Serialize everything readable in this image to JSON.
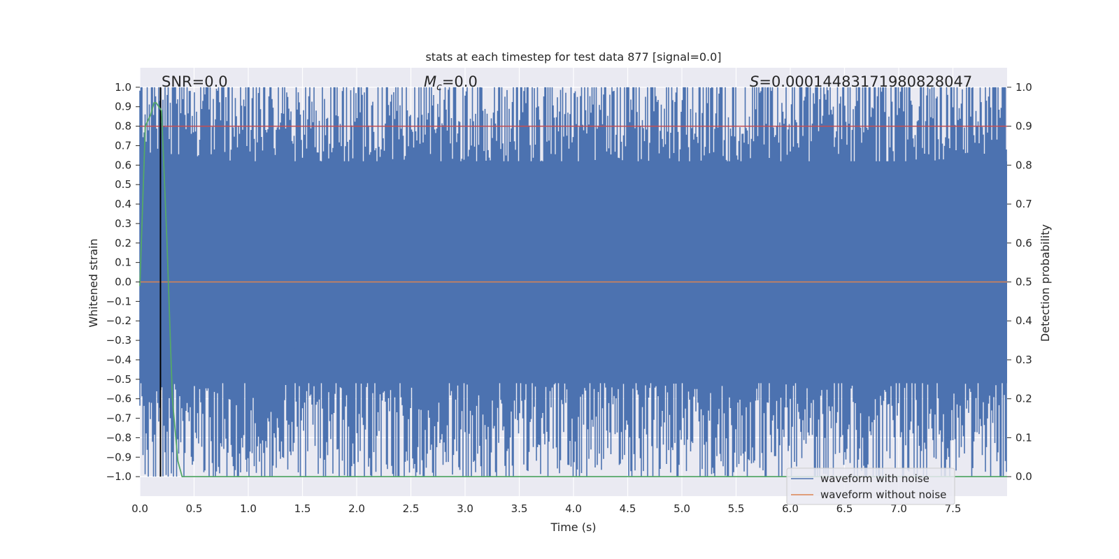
{
  "chart_data": {
    "type": "line",
    "title": "stats at each timestep for test data 877 [signal=0.0]",
    "xlabel": "Time (s)",
    "ylabel_left": "Whitened strain",
    "ylabel_right": "Detection probability",
    "xlim": [
      0.0,
      8.0
    ],
    "ylim_left": [
      -1.1,
      1.1
    ],
    "ylim_right": [
      -0.05,
      1.05
    ],
    "xticks": [
      "0.0",
      "0.5",
      "1.0",
      "1.5",
      "2.0",
      "2.5",
      "3.0",
      "3.5",
      "4.0",
      "4.5",
      "5.0",
      "5.5",
      "6.0",
      "6.5",
      "7.0",
      "7.5"
    ],
    "yticks_left": [
      "1.0",
      "0.9",
      "0.8",
      "0.7",
      "0.6",
      "0.5",
      "0.4",
      "0.3",
      "0.2",
      "0.1",
      "0.0",
      "−0.1",
      "−0.2",
      "−0.3",
      "−0.4",
      "−0.5",
      "−0.6",
      "−0.7",
      "−0.8",
      "−0.9",
      "−1.0"
    ],
    "yticks_right": [
      "1.0",
      "0.9",
      "0.8",
      "0.7",
      "0.6",
      "0.5",
      "0.4",
      "0.3",
      "0.2",
      "0.1",
      "0.0"
    ],
    "annotations": {
      "snr": "SNR=0.0",
      "mc_symbol": "M",
      "mc_sub": "c",
      "mc_value": "=0.0",
      "s_symbol": "S",
      "s_value": "=0.00014483171980828047"
    },
    "series": [
      {
        "name": "waveform with noise",
        "color": "#4c72b0",
        "description": "whitened noisy strain, clipped to [-1, 1]"
      },
      {
        "name": "waveform without noise",
        "color": "#dd8452",
        "x": [
          0.0,
          8.0
        ],
        "y": [
          0.0,
          0.0
        ]
      },
      {
        "name": "detection probability",
        "color": "#55a868",
        "axis": "right",
        "x": [
          0.0,
          0.05,
          0.1,
          0.13,
          0.15,
          0.2,
          0.25,
          0.3,
          0.35,
          0.39,
          8.0
        ],
        "y": [
          0.49,
          0.9,
          0.93,
          0.96,
          0.96,
          0.94,
          0.6,
          0.2,
          0.04,
          0.0,
          0.0
        ]
      },
      {
        "name": "threshold",
        "color": "#c44e52",
        "axis": "right",
        "x": [
          0.0,
          8.0
        ],
        "y": [
          0.9,
          0.9
        ]
      },
      {
        "name": "event marker",
        "color": "#000000",
        "x": [
          0.19,
          0.19
        ],
        "y": [
          -1.0,
          1.0
        ]
      }
    ],
    "legend": [
      "waveform with noise",
      "waveform without noise"
    ],
    "legend_position": "lower-right"
  }
}
